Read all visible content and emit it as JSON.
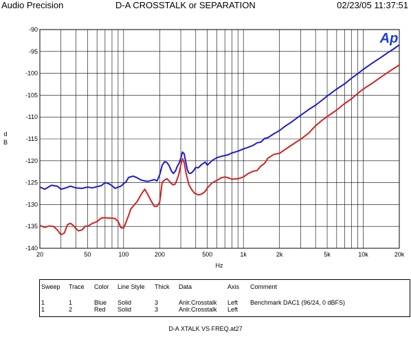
{
  "header": {
    "left": "Audio Precision",
    "center": "D-A CROSSTALK or SEPARATION",
    "right": "02/23/05 11:37:51"
  },
  "logo_text": "Ap",
  "colors": {
    "blue": "#1a1ad0",
    "red": "#d42020",
    "logo": "#1a3fd6"
  },
  "chart_data": {
    "type": "line",
    "title": "D-A CROSSTALK or SEPARATION",
    "xlabel": "Hz",
    "ylabel": "dB",
    "xscale": "log",
    "xlim": [
      20,
      20000
    ],
    "ylim": [
      -140,
      -90
    ],
    "x_ticks": [
      20,
      50,
      100,
      200,
      500,
      1000,
      2000,
      5000,
      10000,
      20000
    ],
    "x_tick_labels": [
      "20",
      "50",
      "100",
      "200",
      "500",
      "1k",
      "2k",
      "5k",
      "10k",
      "20k"
    ],
    "y_ticks": [
      -90,
      -95,
      -100,
      -105,
      -110,
      -115,
      -120,
      -125,
      -130,
      -135,
      -140
    ],
    "y_tick_labels": [
      "-90",
      "-95",
      "-100",
      "-105",
      "-110",
      "-115",
      "-120",
      "-125",
      "-130",
      "-135",
      "-140"
    ],
    "grid": true,
    "series": [
      {
        "name": "Blue",
        "color": "#1a1ad0",
        "x": [
          20,
          22,
          25,
          28,
          30,
          33,
          36,
          40,
          45,
          50,
          55,
          60,
          65,
          70,
          75,
          80,
          85,
          90,
          95,
          100,
          105,
          110,
          120,
          130,
          140,
          150,
          160,
          170,
          180,
          190,
          200,
          210,
          220,
          230,
          240,
          250,
          260,
          270,
          280,
          290,
          300,
          310,
          320,
          330,
          340,
          350,
          360,
          370,
          380,
          390,
          400,
          420,
          450,
          480,
          500,
          550,
          600,
          650,
          700,
          750,
          800,
          900,
          1000,
          1100,
          1200,
          1300,
          1400,
          1500,
          1600,
          1800,
          2000,
          2200,
          2500,
          2800,
          3000,
          3500,
          4000,
          4500,
          5000,
          6000,
          7000,
          8000,
          9000,
          10000,
          12000,
          14000,
          16000,
          18000,
          20000
        ],
        "y": [
          -126.0,
          -126.5,
          -125.6,
          -125.8,
          -126.5,
          -126.2,
          -125.8,
          -126.2,
          -126.3,
          -126.0,
          -126.2,
          -125.9,
          -125.7,
          -125.0,
          -125.2,
          -125.7,
          -126.3,
          -126.0,
          -125.8,
          -125.2,
          -124.8,
          -123.8,
          -123.5,
          -123.9,
          -124.4,
          -124.6,
          -124.7,
          -124.5,
          -124.3,
          -124.6,
          -123.2,
          -121.0,
          -120.2,
          -120.4,
          -121.1,
          -122.3,
          -122.9,
          -122.4,
          -121.3,
          -120.6,
          -119.4,
          -118.0,
          -118.4,
          -120.2,
          -122.0,
          -122.8,
          -122.9,
          -122.7,
          -122.4,
          -122.0,
          -121.5,
          -121.6,
          -120.8,
          -120.3,
          -121.0,
          -119.9,
          -119.3,
          -119.0,
          -118.8,
          -118.6,
          -118.2,
          -117.8,
          -117.3,
          -116.9,
          -116.5,
          -115.9,
          -115.7,
          -114.9,
          -114.7,
          -113.8,
          -113.1,
          -112.2,
          -111.2,
          -110.2,
          -109.6,
          -108.3,
          -107.3,
          -106.2,
          -105.2,
          -103.6,
          -102.4,
          -101.1,
          -100.1,
          -99.1,
          -97.6,
          -96.4,
          -95.3,
          -94.4,
          -93.5
        ]
      },
      {
        "name": "Red",
        "color": "#d42020",
        "x": [
          20,
          22,
          24,
          26,
          28,
          30,
          32,
          34,
          36,
          38,
          40,
          42,
          45,
          48,
          50,
          55,
          60,
          65,
          70,
          75,
          80,
          85,
          90,
          95,
          100,
          105,
          110,
          115,
          120,
          130,
          140,
          150,
          160,
          170,
          180,
          190,
          200,
          210,
          220,
          230,
          240,
          250,
          260,
          270,
          280,
          290,
          300,
          310,
          320,
          330,
          340,
          350,
          360,
          370,
          380,
          390,
          400,
          420,
          450,
          480,
          500,
          550,
          600,
          650,
          700,
          750,
          800,
          900,
          1000,
          1100,
          1200,
          1300,
          1400,
          1500,
          1600,
          1800,
          2000,
          2200,
          2500,
          2800,
          3000,
          3500,
          4000,
          4500,
          5000,
          6000,
          7000,
          8000,
          9000,
          10000,
          12000,
          14000,
          16000,
          18000,
          20000
        ],
        "y": [
          -134.8,
          -135.2,
          -134.9,
          -135.0,
          -135.8,
          -136.9,
          -136.5,
          -134.6,
          -134.3,
          -134.8,
          -135.5,
          -136.0,
          -135.8,
          -134.9,
          -135.0,
          -134.3,
          -133.9,
          -133.1,
          -133.0,
          -133.1,
          -133.1,
          -133.2,
          -133.9,
          -135.3,
          -135.4,
          -134.0,
          -132.5,
          -131.0,
          -130.4,
          -129.3,
          -127.7,
          -126.5,
          -127.8,
          -129.2,
          -130.4,
          -130.4,
          -129.5,
          -124.9,
          -124.4,
          -124.1,
          -124.6,
          -125.2,
          -125.5,
          -125.3,
          -124.2,
          -122.9,
          -121.0,
          -119.5,
          -120.4,
          -122.4,
          -124.0,
          -125.4,
          -126.0,
          -126.6,
          -127.0,
          -127.4,
          -127.5,
          -127.8,
          -127.6,
          -127.0,
          -126.2,
          -125.0,
          -124.5,
          -123.9,
          -123.7,
          -123.9,
          -124.2,
          -124.1,
          -123.7,
          -122.9,
          -122.4,
          -122.2,
          -121.2,
          -120.6,
          -119.4,
          -118.5,
          -118.3,
          -117.5,
          -116.5,
          -115.6,
          -115.1,
          -113.7,
          -112.0,
          -110.8,
          -109.9,
          -108.4,
          -106.9,
          -105.8,
          -104.6,
          -103.6,
          -102.2,
          -100.9,
          -99.8,
          -98.9,
          -98.1
        ]
      }
    ]
  },
  "legend": {
    "headers": [
      "Sweep",
      "Trace",
      "Color",
      "Line Style",
      "Thick",
      "Data",
      "Axis",
      "Comment"
    ],
    "rows": [
      [
        "1",
        "1",
        "Blue",
        "Solid",
        "3",
        "Anlr.Crosstalk",
        "Left",
        "Benchmark DAC1 (96/24, 0 dBFS)"
      ],
      [
        "1",
        "2",
        "Red",
        "Solid",
        "3",
        "Anlr.Crosstalk",
        "Left",
        ""
      ]
    ]
  },
  "footer": "D-A XTALK VS FREQ.at27"
}
